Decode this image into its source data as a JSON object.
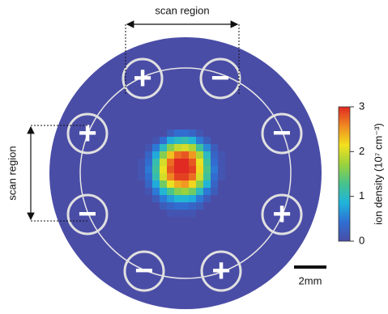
{
  "chart_data": {
    "type": "heatmap",
    "colorbar_label": "ion density (10⁷ cm⁻³)",
    "zlim": [
      0,
      3
    ],
    "zticks": [
      0,
      1,
      2,
      3
    ],
    "colormap": [
      "#4a4da6",
      "#2f6fd3",
      "#1fb4dc",
      "#47c38c",
      "#9bd23c",
      "#f2e11f",
      "#f08a22",
      "#e02a22"
    ],
    "z": [
      [
        0,
        0,
        0,
        0,
        0.2,
        0.4,
        0.4,
        0.3,
        0.1,
        0,
        0,
        0,
        0
      ],
      [
        0,
        0,
        0.1,
        0.4,
        0.8,
        1.0,
        1.1,
        0.9,
        0.5,
        0.2,
        0,
        0,
        0
      ],
      [
        0,
        0.1,
        0.5,
        1.0,
        1.6,
        1.9,
        2.0,
        1.8,
        1.2,
        0.6,
        0.2,
        0,
        0
      ],
      [
        0,
        0.3,
        0.8,
        1.6,
        2.3,
        2.7,
        2.8,
        2.5,
        1.8,
        1.0,
        0.3,
        0.1,
        0
      ],
      [
        0.1,
        0.4,
        1.1,
        2.0,
        2.7,
        3.0,
        3.0,
        2.8,
        2.1,
        1.2,
        0.4,
        0.1,
        0
      ],
      [
        0.1,
        0.5,
        1.2,
        2.1,
        2.8,
        3.0,
        3.0,
        2.9,
        2.2,
        1.3,
        0.5,
        0.1,
        0
      ],
      [
        0.1,
        0.4,
        1.1,
        2.0,
        2.6,
        2.9,
        2.9,
        2.7,
        2.0,
        1.2,
        0.4,
        0.1,
        0
      ],
      [
        0,
        0.3,
        0.8,
        1.5,
        2.1,
        2.4,
        2.5,
        2.2,
        1.6,
        0.9,
        0.3,
        0,
        0
      ],
      [
        0,
        0.1,
        0.5,
        0.9,
        1.3,
        1.6,
        1.7,
        1.5,
        1.0,
        0.5,
        0.2,
        0,
        0
      ],
      [
        0,
        0,
        0.2,
        0.5,
        0.7,
        0.9,
        0.9,
        0.8,
        0.5,
        0.2,
        0,
        0,
        0
      ],
      [
        0,
        0,
        0,
        0.2,
        0.3,
        0.4,
        0.4,
        0.3,
        0.2,
        0,
        0,
        0,
        0
      ],
      [
        0,
        0,
        0,
        0,
        0.1,
        0.1,
        0.1,
        0.1,
        0,
        0,
        0,
        0,
        0
      ]
    ],
    "electrodes": [
      "+",
      "−",
      "+",
      "−",
      "−",
      "+",
      "−",
      "+"
    ],
    "scan_labels": [
      "scan region",
      "scan region"
    ],
    "scale_label": "2mm"
  }
}
